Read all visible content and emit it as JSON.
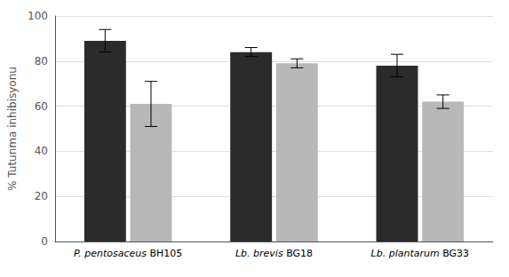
{
  "chart_data": {
    "type": "bar",
    "categories": [
      "P. pentosaceus BH105",
      "Lb. brevis BG18",
      "Lb. plantarum BG33"
    ],
    "ylabel": "% Tutunma inhibisyonu",
    "ylim": [
      0,
      100
    ],
    "yticks": [
      0,
      20,
      40,
      60,
      80,
      100
    ],
    "grid": true,
    "series": [
      {
        "color": "#2b2b2b",
        "values": [
          89,
          84,
          78
        ],
        "errors": [
          5,
          2,
          5
        ]
      },
      {
        "color": "#b8b8b8",
        "values": [
          61,
          79,
          62
        ],
        "errors": [
          10,
          2,
          3
        ]
      }
    ]
  }
}
